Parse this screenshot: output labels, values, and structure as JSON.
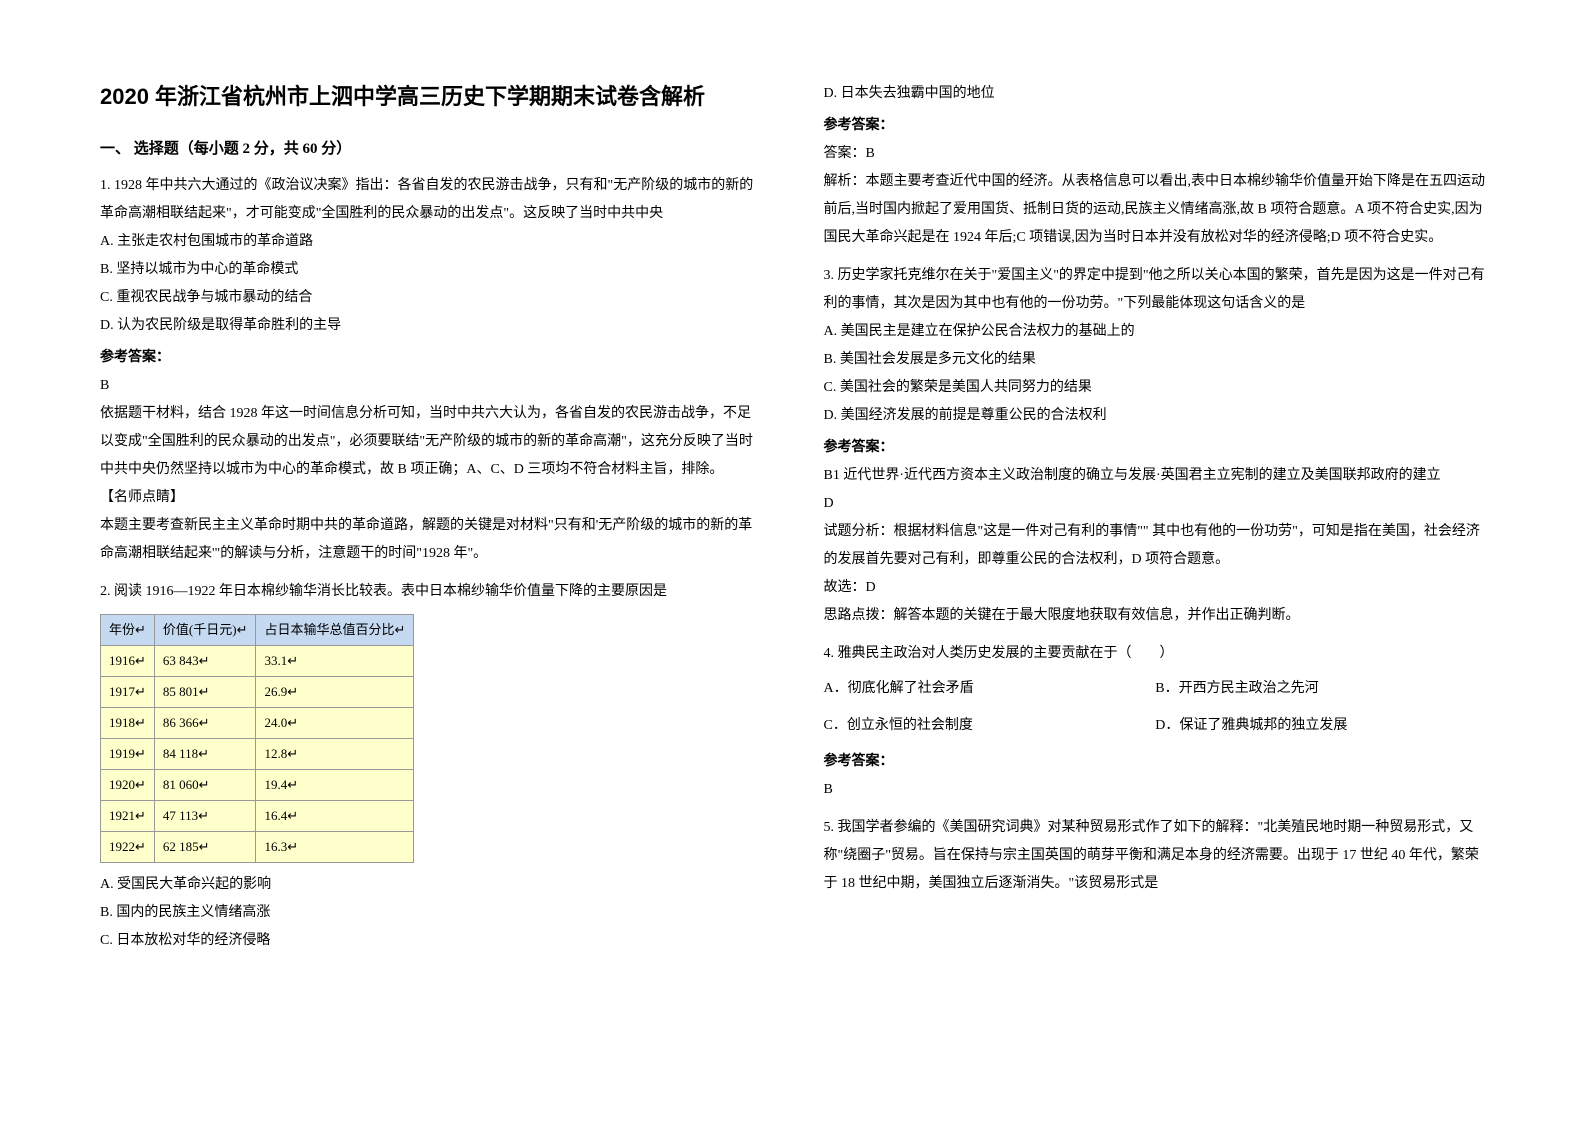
{
  "title": "2020 年浙江省杭州市上泗中学高三历史下学期期末试卷含解析",
  "section1_heading": "一、 选择题（每小题 2 分，共 60 分）",
  "q1": {
    "text": "1. 1928 年中共六大通过的《政治议决案》指出：各省自发的农民游击战争，只有和\"无产阶级的城市的新的革命高潮相联结起来\"，才可能变成\"全国胜利的民众暴动的出发点\"。这反映了当时中共中央",
    "optA": "A. 主张走农村包围城市的革命道路",
    "optB": "B. 坚持以城市为中心的革命模式",
    "optC": "C. 重视农民战争与城市暴动的结合",
    "optD": "D. 认为农民阶级是取得革命胜利的主导",
    "ansLabel": "参考答案：",
    "ansLetter": "B",
    "explain1": "依据题干材料，结合 1928 年这一时间信息分析可知，当时中共六大认为，各省自发的农民游击战争，不足以变成\"全国胜利的民众暴动的出发点\"，必须要联结\"无产阶级的城市的新的革命高潮\"，这充分反映了当时中共中央仍然坚持以城市为中心的革命模式，故 B 项正确；A、C、D 三项均不符合材料主旨，排除。",
    "tipLabel": "【名师点睛】",
    "explain2": "本题主要考查新民主主义革命时期中共的革命道路，解题的关键是对材料\"只有和'无产阶级的城市的新的革命高潮相联结起来'\"的解读与分析，注意题干的时间\"1928 年\"。"
  },
  "q2": {
    "text": "2. 阅读 1916—1922 年日本棉纱输华消长比较表。表中日本棉纱输华价值量下降的主要原因是",
    "table": {
      "headers": [
        "年份↵",
        "价值(千日元)↵",
        "占日本输华总值百分比↵"
      ],
      "rows": [
        [
          "1916↵",
          "63 843↵",
          "33.1↵"
        ],
        [
          "1917↵",
          "85 801↵",
          "26.9↵"
        ],
        [
          "1918↵",
          "86 366↵",
          "24.0↵"
        ],
        [
          "1919↵",
          "84 118↵",
          "12.8↵"
        ],
        [
          "1920↵",
          "81 060↵",
          "19.4↵"
        ],
        [
          "1921↵",
          "47 113↵",
          "16.4↵"
        ],
        [
          "1922↵",
          "62 185↵",
          "16.3↵"
        ]
      ],
      "header_bg": "#c5d9f1",
      "cell_bg": "#ffffcc",
      "border_color": "#999999"
    },
    "optA": "A. 受国民大革命兴起的影响",
    "optB": "B. 国内的民族主义情绪高涨",
    "optC": "C. 日本放松对华的经济侵略",
    "optD": "D. 日本失去独霸中国的地位",
    "ansLabel": "参考答案：",
    "ansPrefix": "答案：B",
    "explain": "解析：本题主要考查近代中国的经济。从表格信息可以看出,表中日本棉纱输华价值量开始下降是在五四运动前后,当时国内掀起了爱用国货、抵制日货的运动,民族主义情绪高涨,故 B 项符合题意。A 项不符合史实,因为国民大革命兴起是在 1924 年后;C 项错误,因为当时日本并没有放松对华的经济侵略;D 项不符合史实。"
  },
  "q3": {
    "text": "3. 历史学家托克维尔在关于\"爱国主义\"的界定中提到\"他之所以关心本国的繁荣，首先是因为这是一件对己有利的事情，其次是因为其中也有他的一份功劳。\"下列最能体现这句话含义的是",
    "optA": "A. 美国民主是建立在保护公民合法权力的基础上的",
    "optB": "B. 美国社会发展是多元文化的结果",
    "optC": "C. 美国社会的繁荣是美国人共同努力的结果",
    "optD": "D. 美国经济发展的前提是尊重公民的合法权利",
    "ansLabel": "参考答案：",
    "bookRef": "B1 近代世界·近代西方资本主义政治制度的确立与发展·英国君主立宪制的建立及美国联邦政府的建立",
    "ansLetter": "D",
    "explain1": "试题分析：根据材料信息\"这是一件对己有利的事情\"\" 其中也有他的一份功劳\"，可知是指在美国，社会经济的发展首先要对己有利，即尊重公民的合法权利，D 项符合题意。",
    "explain2": "故选：D",
    "explain3": "思路点拨：解答本题的关键在于最大限度地获取有效信息，并作出正确判断。"
  },
  "q4": {
    "text": "4. 雅典民主政治对人类历史发展的主要贡献在于（　　）",
    "optA": "A．彻底化解了社会矛盾",
    "optB": "B．开西方民主政治之先河",
    "optC": "C．创立永恒的社会制度",
    "optD": "D．保证了雅典城邦的独立发展",
    "ansLabel": "参考答案：",
    "ansLetter": "B"
  },
  "q5": {
    "text": "5. 我国学者参编的《美国研究词典》对某种贸易形式作了如下的解释：\"北美殖民地时期一种贸易形式，又称\"绕圈子\"贸易。旨在保持与宗主国英国的萌芽平衡和满足本身的经济需要。出现于 17 世纪 40 年代，繁荣于 18 世纪中期，美国独立后逐渐消失。\"该贸易形式是"
  }
}
